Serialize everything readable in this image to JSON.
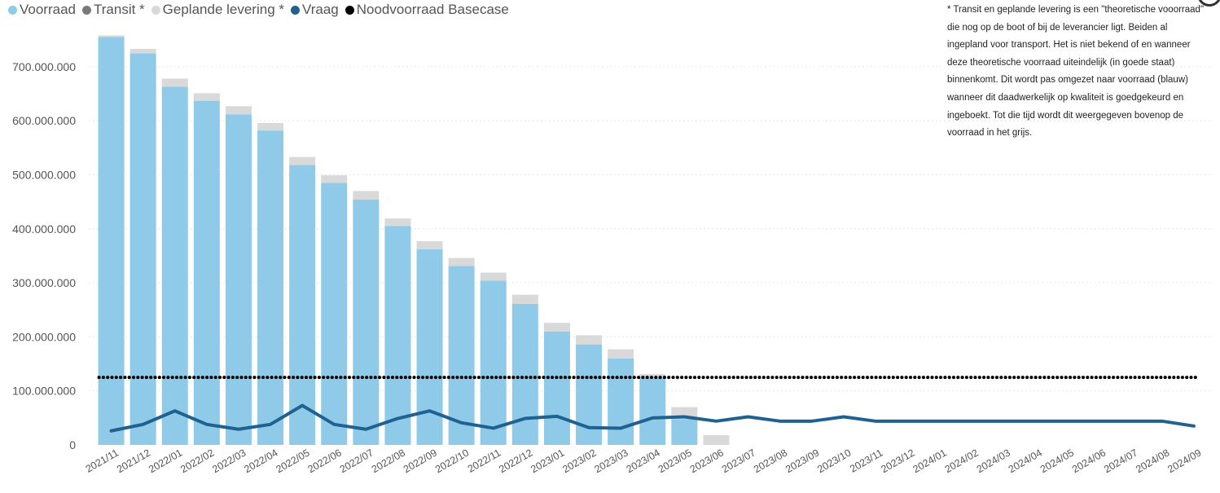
{
  "legend": {
    "voorraad": "Voorraad",
    "transit": "Transit *",
    "gepland": "Geplande levering *",
    "vraag": "Vraag",
    "nood": "Noodvoorraad Basecase"
  },
  "note": "* Transit en geplande levering is een \"theoretische vooorraad\" die nog op de boot of bij de leverancier ligt. Beiden al ingepland voor transport. Het is niet bekend of en wanneer deze theoretische voorraad uiteindelijk (in goede staat) binnenkomt. Dit wordt pas omgezet naar voorraad (blauw) wanneer dit daadwerkelijk op kwaliteit is goedgekeurd en ingeboekt. Tot die tijd wordt dit weergegeven bovenop de voorraad in het grijs.",
  "colors": {
    "voorraad": "#8fcbe8",
    "transit": "#7a7a7a",
    "gepland": "#d9d9d9",
    "vraag": "#1f6291",
    "nood": "#000000"
  },
  "chart_data": {
    "type": "bar",
    "stacked": true,
    "categories": [
      "2021/11",
      "2021/12",
      "2022/01",
      "2022/02",
      "2022/03",
      "2022/04",
      "2022/05",
      "2022/06",
      "2022/07",
      "2022/08",
      "2022/09",
      "2022/10",
      "2022/11",
      "2022/12",
      "2023/01",
      "2023/02",
      "2023/03",
      "2023/04",
      "2023/05",
      "2023/06",
      "2023/07",
      "2023/08",
      "2023/09",
      "2023/10",
      "2023/11",
      "2023/12",
      "2024/01",
      "2024/02",
      "2024/03",
      "2024/04",
      "2024/05",
      "2024/06",
      "2024/07",
      "2024/08",
      "2024/09"
    ],
    "series": [
      {
        "name": "Voorraad",
        "type": "bar",
        "values": [
          755000000,
          725000000,
          663000000,
          637000000,
          612000000,
          582000000,
          518000000,
          485000000,
          454000000,
          405000000,
          362000000,
          331000000,
          304000000,
          261000000,
          210000000,
          186000000,
          160000000,
          124000000,
          48000000,
          0,
          0,
          0,
          0,
          0,
          0,
          0,
          0,
          0,
          0,
          0,
          0,
          0,
          0,
          0,
          0
        ]
      },
      {
        "name": "Transit *",
        "type": "bar",
        "values": [
          0,
          0,
          0,
          0,
          0,
          0,
          0,
          0,
          0,
          0,
          0,
          0,
          0,
          0,
          0,
          0,
          0,
          0,
          0,
          0,
          0,
          0,
          0,
          0,
          0,
          0,
          0,
          0,
          0,
          0,
          0,
          0,
          0,
          0,
          0
        ]
      },
      {
        "name": "Geplande levering *",
        "type": "bar",
        "values": [
          3000000,
          8000000,
          15000000,
          14000000,
          15000000,
          14000000,
          15000000,
          14000000,
          16000000,
          14000000,
          15000000,
          15000000,
          15000000,
          17000000,
          16000000,
          17000000,
          17000000,
          7000000,
          22000000,
          18000000,
          0,
          0,
          0,
          0,
          0,
          0,
          0,
          0,
          0,
          0,
          0,
          0,
          0,
          0,
          0
        ]
      },
      {
        "name": "Vraag",
        "type": "line",
        "values": [
          26000000,
          38000000,
          63000000,
          38000000,
          29000000,
          38000000,
          73000000,
          38000000,
          29000000,
          49000000,
          63000000,
          41000000,
          31000000,
          49000000,
          53000000,
          32000000,
          31000000,
          50000000,
          52000000,
          44000000,
          52000000,
          44000000,
          44000000,
          52000000,
          44000000,
          44000000,
          44000000,
          44000000,
          44000000,
          44000000,
          44000000,
          44000000,
          44000000,
          44000000,
          35000000
        ]
      },
      {
        "name": "Noodvoorraad Basecase",
        "type": "dotted-line",
        "values": [
          125000000,
          125000000,
          125000000,
          125000000,
          125000000,
          125000000,
          125000000,
          125000000,
          125000000,
          125000000,
          125000000,
          125000000,
          125000000,
          125000000,
          125000000,
          125000000,
          125000000,
          125000000,
          125000000,
          125000000,
          125000000,
          125000000,
          125000000,
          125000000,
          125000000,
          125000000,
          125000000,
          125000000,
          125000000,
          125000000,
          125000000,
          125000000,
          125000000,
          125000000,
          125000000
        ]
      }
    ],
    "yticks": [
      0,
      100000000,
      200000000,
      300000000,
      400000000,
      500000000,
      600000000,
      700000000
    ],
    "ytick_labels": [
      "0",
      "100.000.000",
      "200.000.000",
      "300.000.000",
      "400.000.000",
      "500.000.000",
      "600.000.000",
      "700.000.000"
    ],
    "ylim": [
      0,
      800000000
    ],
    "grid": true,
    "legend_position": "top-left"
  }
}
